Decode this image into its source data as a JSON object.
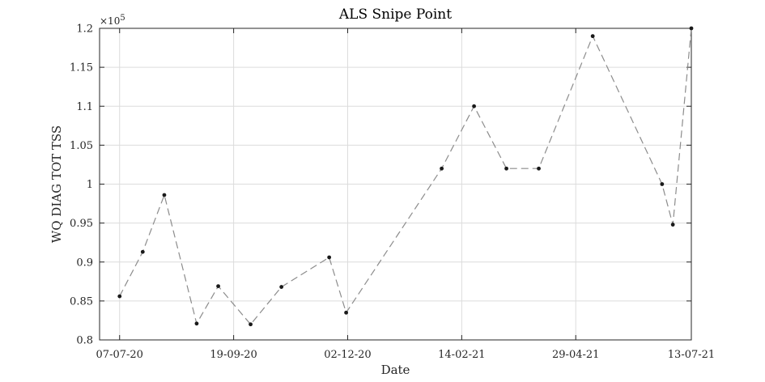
{
  "chart_data": {
    "type": "line",
    "title": "ALS Snipe Point",
    "xlabel": "Date",
    "ylabel": "WQ DIAG TOT TSS",
    "y_exponent_label": "×10",
    "y_exponent_power": "5",
    "x_axis_type": "date",
    "xlim": [
      "2020-06-24",
      "2021-07-13"
    ],
    "ylim": [
      0.8,
      1.2
    ],
    "grid": true,
    "legend": "none",
    "x_ticks": [
      {
        "date": "2020-07-07",
        "label": "07-07-20"
      },
      {
        "date": "2020-09-19",
        "label": "19-09-20"
      },
      {
        "date": "2020-12-02",
        "label": "02-12-20"
      },
      {
        "date": "2021-02-14",
        "label": "14-02-21"
      },
      {
        "date": "2021-04-29",
        "label": "29-04-21"
      },
      {
        "date": "2021-07-13",
        "label": "13-07-21"
      }
    ],
    "y_ticks": [
      {
        "value": 0.8,
        "label": "0.8"
      },
      {
        "value": 0.85,
        "label": "0.85"
      },
      {
        "value": 0.9,
        "label": "0.9"
      },
      {
        "value": 0.95,
        "label": "0.95"
      },
      {
        "value": 1.0,
        "label": "1"
      },
      {
        "value": 1.05,
        "label": "1.05"
      },
      {
        "value": 1.1,
        "label": "1.1"
      },
      {
        "value": 1.15,
        "label": "1.15"
      },
      {
        "value": 1.2,
        "label": "1.2"
      }
    ],
    "series": [
      {
        "color": "#8c8c8c",
        "marker_color": "#1a1a1a",
        "line_style": "dashed",
        "x": [
          "2020-07-07",
          "2020-07-22",
          "2020-08-05",
          "2020-08-26",
          "2020-09-09",
          "2020-09-30",
          "2020-10-20",
          "2020-11-20",
          "2020-12-01",
          "2021-02-01",
          "2021-02-22",
          "2021-03-15",
          "2021-04-05",
          "2021-05-10",
          "2021-06-24",
          "2021-07-01",
          "2021-07-13"
        ],
        "y": [
          0.856,
          0.913,
          0.986,
          0.821,
          0.869,
          0.82,
          0.868,
          0.906,
          0.835,
          1.02,
          1.1,
          1.02,
          1.02,
          1.19,
          1.0,
          0.948,
          1.2
        ]
      }
    ]
  }
}
